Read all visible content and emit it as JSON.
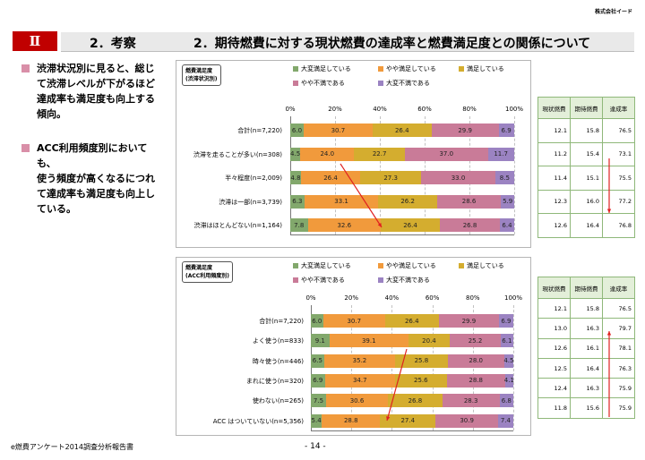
{
  "header": {
    "company": "株式会社イード",
    "chapter": "Ⅱ",
    "section": "2．考察",
    "title": "2．期待燃費に対する現状燃費の達成率と燃費満足度との関係について"
  },
  "bullets": [
    {
      "lines": [
        "渋滞状況別に見ると、総じ",
        "て渋滞レベルが下がるほど",
        "達成率も満足度も向上する",
        "傾向。"
      ]
    },
    {
      "lines": [
        "ACC利用頻度別においても、",
        "使う頻度が高くなるにつれ",
        "て達成率も満足度も向上し",
        "ている。"
      ]
    }
  ],
  "colors": {
    "s1": "#82a86c",
    "s2": "#f19a3c",
    "s3": "#d4ad2f",
    "s4": "#c97b98",
    "s5": "#9b83c2",
    "arrow": "#e02020"
  },
  "legend": [
    "大変満足している",
    "やや満足している",
    "満足している",
    "やや不満である",
    "大変不満である"
  ],
  "axis": [
    "0%",
    "20%",
    "40%",
    "60%",
    "80%",
    "100%"
  ],
  "chart_data": [
    {
      "type": "bar",
      "stacked": true,
      "orientation": "horizontal",
      "title": "燃費満足度",
      "subtitle": "(渋滞状況別)",
      "categories": [
        "合計(n=7,220)",
        "渋滞を走ることが多い(n=308)",
        "半々程度(n=2,009)",
        "渋滞は一部(n=3,739)",
        "渋滞はほとんどない(n=1,164)"
      ],
      "series": [
        {
          "name": "大変満足している",
          "values": [
            6.0,
            4.5,
            4.8,
            6.3,
            7.8
          ]
        },
        {
          "name": "やや満足している",
          "values": [
            30.7,
            24.0,
            26.4,
            33.1,
            32.6
          ]
        },
        {
          "name": "満足している",
          "values": [
            26.4,
            22.7,
            27.3,
            26.2,
            26.4
          ]
        },
        {
          "name": "やや不満である",
          "values": [
            29.9,
            37.0,
            33.0,
            28.6,
            26.8
          ]
        },
        {
          "name": "大変不満である",
          "values": [
            6.9,
            11.7,
            8.5,
            5.9,
            6.4
          ]
        }
      ],
      "xlim": [
        0,
        100
      ],
      "legend_position": "top",
      "table": {
        "headers": [
          "現状燃費",
          "期待燃費",
          "達成率"
        ],
        "rows": [
          [
            "12.1",
            "15.8",
            "76.5"
          ],
          [
            "11.2",
            "15.4",
            "73.1"
          ],
          [
            "11.4",
            "15.1",
            "75.5"
          ],
          [
            "12.3",
            "16.0",
            "77.2"
          ],
          [
            "12.6",
            "16.4",
            "76.8"
          ]
        ]
      }
    },
    {
      "type": "bar",
      "stacked": true,
      "orientation": "horizontal",
      "title": "燃費満足度",
      "subtitle": "(ACC利用頻度別)",
      "categories": [
        "合計(n=7,220)",
        "よく使う(n=833)",
        "時々使う(n=446)",
        "まれに使う(n=320)",
        "使わない(n=265)",
        "ACC はついていない(n=5,356)"
      ],
      "series": [
        {
          "name": "大変満足している",
          "values": [
            6.0,
            9.1,
            6.5,
            6.9,
            7.5,
            5.4
          ]
        },
        {
          "name": "やや満足している",
          "values": [
            30.7,
            39.1,
            35.2,
            34.7,
            30.6,
            28.8
          ]
        },
        {
          "name": "満足している",
          "values": [
            26.4,
            20.4,
            25.8,
            25.6,
            26.8,
            27.4
          ]
        },
        {
          "name": "やや不満である",
          "values": [
            29.9,
            25.2,
            28.0,
            28.8,
            28.3,
            30.9
          ]
        },
        {
          "name": "大変不満である",
          "values": [
            6.9,
            6.1,
            4.5,
            4.1,
            6.8,
            7.4
          ]
        }
      ],
      "xlim": [
        0,
        100
      ],
      "legend_position": "top",
      "table": {
        "headers": [
          "現状燃費",
          "期待燃費",
          "達成率"
        ],
        "rows": [
          [
            "12.1",
            "15.8",
            "76.5"
          ],
          [
            "13.0",
            "16.3",
            "79.7"
          ],
          [
            "12.6",
            "16.1",
            "78.1"
          ],
          [
            "12.5",
            "16.4",
            "76.3"
          ],
          [
            "12.4",
            "16.3",
            "75.9"
          ],
          [
            "11.8",
            "15.6",
            "75.9"
          ]
        ]
      }
    }
  ],
  "footer": {
    "left": "e燃費アンケート2014調査分析報告書",
    "page": "- 14 -"
  }
}
